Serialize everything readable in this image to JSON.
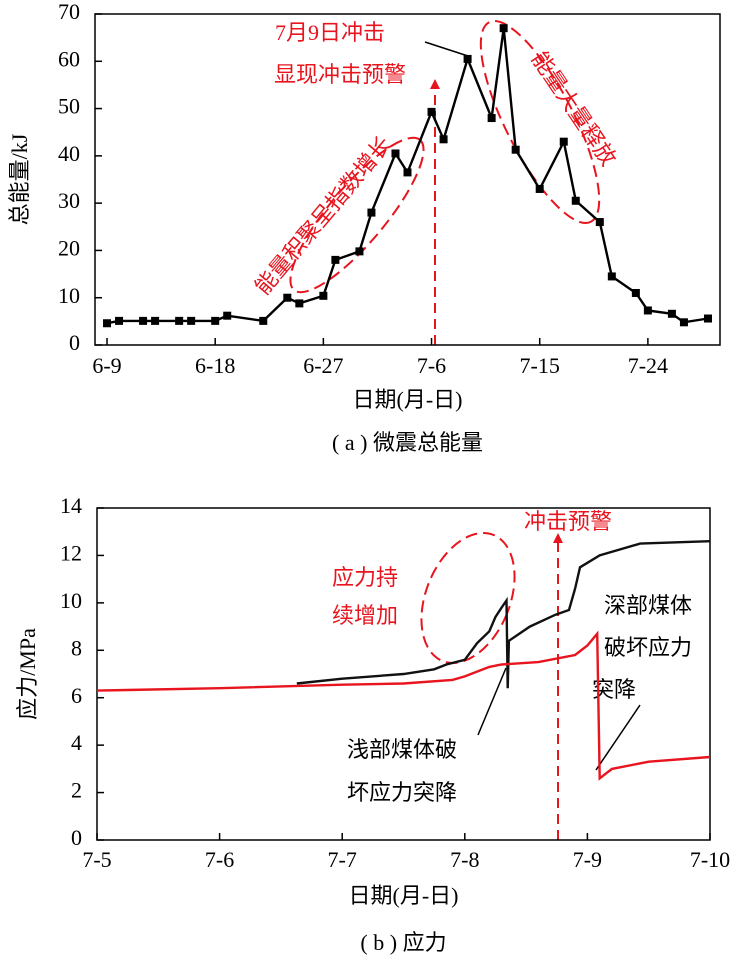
{
  "chart_data": [
    {
      "type": "line",
      "caption": "( a ) 微震总能量",
      "x_label": "日期(月-日)",
      "y_label": "总能量/kJ",
      "xlim": [
        "6-8",
        "7-30"
      ],
      "xticks": [
        "6-9",
        "6-18",
        "6-27",
        "7-6",
        "7-15",
        "7-24"
      ],
      "ylim": [
        0,
        70
      ],
      "yticks": [
        0,
        10,
        20,
        30,
        40,
        50,
        60,
        70
      ],
      "annotations": [
        "7月9日冲击",
        "显现冲击预警",
        "能量积聚呈指数增长",
        "能量大量释放"
      ],
      "series": [
        {
          "color": "#000000",
          "marker": "square",
          "x": [
            "6-9",
            "6-10",
            "6-12",
            "6-13",
            "6-15",
            "6-16",
            "6-18",
            "6-19",
            "6-22",
            "6-24",
            "6-25",
            "6-27",
            "6-28",
            "6-30",
            "7-1",
            "7-3",
            "7-4",
            "7-6",
            "7-7",
            "7-9",
            "7-11",
            "7-12",
            "7-13",
            "7-15",
            "7-17",
            "7-18",
            "7-20",
            "7-21",
            "7-23",
            "7-24",
            "7-26",
            "7-27",
            "7-29"
          ],
          "values": [
            4.6,
            5.1,
            5.1,
            5.1,
            5.1,
            5.1,
            5.1,
            6.2,
            5.1,
            10.0,
            8.8,
            10.4,
            18,
            19.8,
            28,
            40.5,
            36.5,
            49.3,
            43.5,
            60.5,
            48,
            67,
            41.3,
            33,
            43,
            30.5,
            26,
            14.5,
            11,
            7.3,
            6.6,
            4.8,
            5.6
          ]
        }
      ]
    },
    {
      "type": "line",
      "caption": "( b ) 应力",
      "x_label": "日期(月-日)",
      "y_label": "应力/MPa",
      "xlim": [
        5,
        10
      ],
      "xticks": [
        {
          "value": 5,
          "label": "7-5"
        },
        {
          "value": 6,
          "label": "7-6"
        },
        {
          "value": 7,
          "label": "7-7"
        },
        {
          "value": 8,
          "label": "7-8"
        },
        {
          "value": 9,
          "label": "7-9"
        },
        {
          "value": 10,
          "label": "7-10"
        }
      ],
      "ylim": [
        0,
        14
      ],
      "yticks": [
        0,
        2,
        4,
        6,
        8,
        10,
        12,
        14
      ],
      "annotations": [
        "冲击预警",
        "应力持",
        "续增加",
        "深部煤体",
        "破坏应力",
        "突降",
        "浅部煤体破",
        "坏应力突降"
      ],
      "series": [
        {
          "color": "#111111",
          "x": [
            6.63,
            7.0,
            7.5,
            7.75,
            7.85,
            8.0,
            8.1,
            8.2,
            8.25,
            8.3,
            8.34,
            8.35,
            8.36,
            8.53,
            8.74,
            8.85,
            8.9,
            8.94,
            9.1,
            9.43,
            10.0
          ],
          "values": [
            6.6,
            6.8,
            7.0,
            7.2,
            7.4,
            7.6,
            8.3,
            8.8,
            9.4,
            9.8,
            10.1,
            6.4,
            8.4,
            9.0,
            9.5,
            9.7,
            10.6,
            11.5,
            12.0,
            12.5,
            12.6
          ]
        },
        {
          "color": "#e8141e",
          "x": [
            5.0,
            6.0,
            7.0,
            7.5,
            7.9,
            8.0,
            8.2,
            8.3,
            8.6,
            8.9,
            9.0,
            9.08,
            9.1,
            9.2,
            9.5,
            10.0
          ],
          "values": [
            6.3,
            6.4,
            6.55,
            6.6,
            6.75,
            6.9,
            7.3,
            7.4,
            7.5,
            7.8,
            8.2,
            8.7,
            2.6,
            3.0,
            3.3,
            3.5
          ]
        }
      ]
    }
  ]
}
